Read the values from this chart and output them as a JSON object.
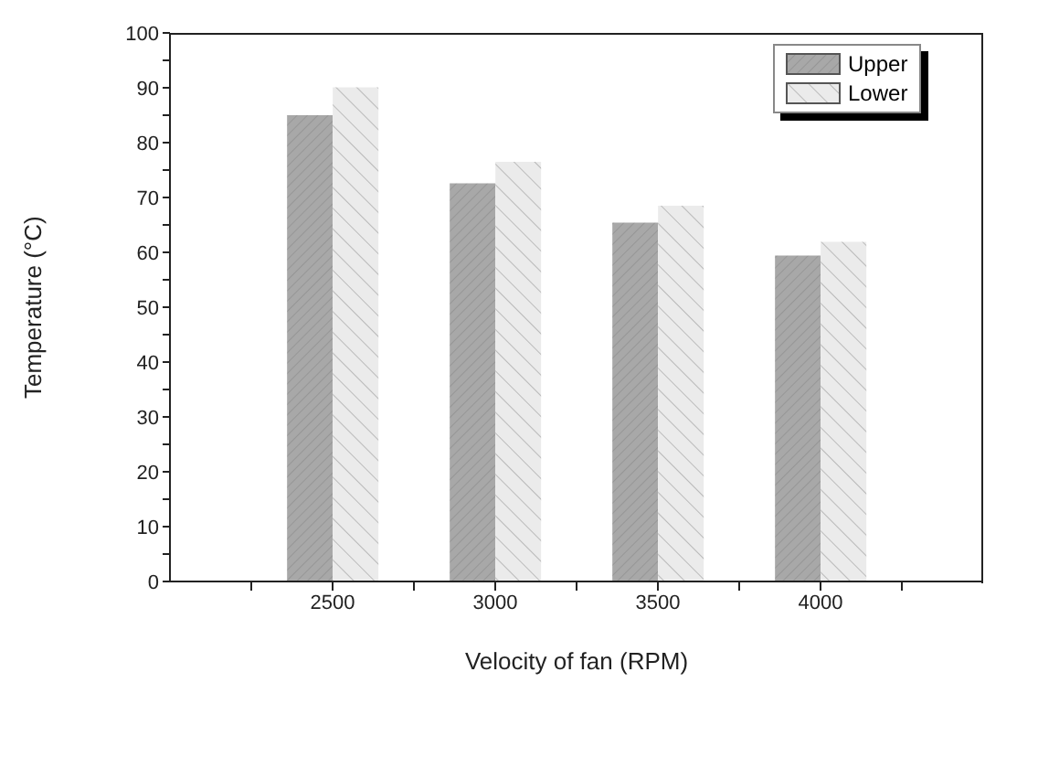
{
  "chart_data": {
    "type": "bar",
    "xlabel": "Velocity of fan (RPM)",
    "ylabel": "Temperature (°C)",
    "x": [
      2500,
      3000,
      3500,
      4000
    ],
    "xlim": [
      2000,
      4500
    ],
    "xticks": [
      {
        "value": 2250,
        "label": null
      },
      2500,
      {
        "value": 2750,
        "label": null
      },
      3000,
      {
        "value": 3250,
        "label": null
      },
      3500,
      {
        "value": 3750,
        "label": null
      },
      4000,
      {
        "value": 4250,
        "label": null
      }
    ],
    "series": [
      {
        "name": "Upper",
        "color": "#a8a8a8",
        "values": [
          85,
          72.6,
          65.4,
          59.4
        ]
      },
      {
        "name": "Lower",
        "color": "#ebebeb",
        "values": [
          90.1,
          76.5,
          68.5,
          61.9
        ]
      }
    ],
    "ylim": [
      0,
      100
    ],
    "yticks": [
      0,
      {
        "value": 5,
        "label": null
      },
      10,
      {
        "value": 15,
        "label": null
      },
      20,
      {
        "value": 25,
        "label": null
      },
      30,
      {
        "value": 35,
        "label": null
      },
      40,
      {
        "value": 45,
        "label": null
      },
      50,
      {
        "value": 55,
        "label": null
      },
      60,
      {
        "value": 65,
        "label": null
      },
      70,
      {
        "value": 75,
        "label": null
      },
      80,
      {
        "value": 85,
        "label": null
      },
      90,
      {
        "value": 95,
        "label": null
      },
      100
    ],
    "legend": "top right",
    "grid": false
  }
}
